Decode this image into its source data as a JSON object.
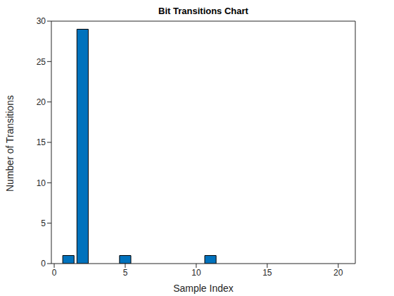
{
  "chart_data": {
    "type": "bar",
    "title": "Bit Transitions Chart",
    "x_label": "Sample Index",
    "y_label": "Number of Transitions",
    "x": [
      1,
      2,
      3,
      4,
      5,
      6,
      7,
      8,
      9,
      10,
      11,
      12,
      13,
      14,
      15,
      16,
      17,
      18,
      19,
      20
    ],
    "values": [
      1,
      29,
      0,
      0,
      1,
      0,
      0,
      0,
      0,
      0,
      1,
      0,
      0,
      0,
      0,
      0,
      0,
      0,
      0,
      0
    ],
    "color": "#0072bd",
    "xlim": [
      -0.2,
      21.2
    ],
    "xticks": [
      0,
      5,
      10,
      15,
      20
    ],
    "ylim": [
      0,
      30
    ],
    "yticks": [
      0,
      5,
      10,
      15,
      20,
      25,
      30
    ],
    "grid": false
  }
}
